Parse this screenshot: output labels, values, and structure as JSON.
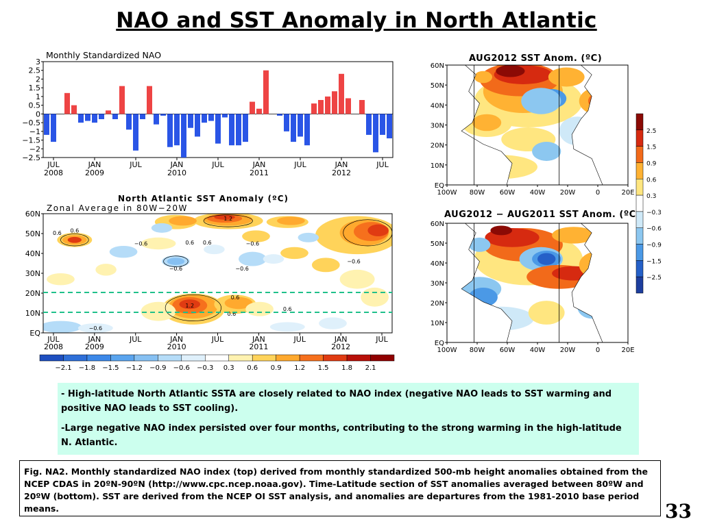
{
  "title": "NAO and SST Anomaly in North Atlantic",
  "nao": {
    "title": "Monthly Standardized NAO",
    "yticks": [
      "3",
      "2.5",
      "2",
      "1.5",
      "1",
      "0.5",
      "0",
      "−0.5",
      "−1",
      "−1.5",
      "−2",
      "−2.5"
    ],
    "xticks": [
      {
        "month": "JUL",
        "year": "2008"
      },
      {
        "month": "JAN",
        "year": "2009"
      },
      {
        "month": "JUL",
        "year": ""
      },
      {
        "month": "JAN",
        "year": "2010"
      },
      {
        "month": "JUL",
        "year": ""
      },
      {
        "month": "JAN",
        "year": "2011"
      },
      {
        "month": "JUL",
        "year": ""
      },
      {
        "month": "JAN",
        "year": "2012"
      },
      {
        "month": "JUL",
        "year": ""
      }
    ]
  },
  "sst": {
    "title": "North Atlantic SST Anomaly (ºC)",
    "subtitle": "Zonal Average in 80W−20W",
    "yticks": [
      "60N",
      "50N",
      "40N",
      "30N",
      "20N",
      "10N",
      "EQ"
    ],
    "xticks": [
      {
        "month": "JUL",
        "year": "2008"
      },
      {
        "month": "JAN",
        "year": "2009"
      },
      {
        "month": "JUL",
        "year": ""
      },
      {
        "month": "JAN",
        "year": "2010"
      },
      {
        "month": "JUL",
        "year": ""
      },
      {
        "month": "JAN",
        "year": "2011"
      },
      {
        "month": "JUL",
        "year": ""
      },
      {
        "month": "JAN",
        "year": "2012"
      },
      {
        "month": "JUL",
        "year": ""
      }
    ],
    "contour_labels": [
      "0.6",
      "0.6",
      "−0.6",
      "1.2",
      "0.6",
      "−0.6",
      "−0.6",
      "−0.6",
      "−0.6",
      "0.6",
      "1.2",
      "0.6",
      "0.6",
      "−0.6",
      "0.6"
    ],
    "colorbar_labels": [
      "−2.1",
      "−1.8",
      "−1.5",
      "−1.2",
      "−0.9",
      "−0.6",
      "−0.3",
      "0.3",
      "0.6",
      "0.9",
      "1.2",
      "1.5",
      "1.8",
      "2.1"
    ],
    "colorbar_colors": [
      "#1e4fc0",
      "#2e6fd8",
      "#3c88e8",
      "#5aa4ee",
      "#86c0f2",
      "#b5dcf8",
      "#dff0fb",
      "#ffffff",
      "#fff2b0",
      "#ffd35a",
      "#ffa92e",
      "#f6701d",
      "#e03b12",
      "#b81008",
      "#900000"
    ]
  },
  "maps": {
    "top_title": "AUG2012 SST Anom. (ºC)",
    "bottom_title": "AUG2012 − AUG2011 SST Anom. (ºC)",
    "lat_ticks": [
      "60N",
      "50N",
      "40N",
      "30N",
      "20N",
      "10N",
      "EQ"
    ],
    "lon_ticks": [
      "100W",
      "80W",
      "60W",
      "40W",
      "20W",
      "0",
      "20E"
    ],
    "colorbar_labels": [
      "2.5",
      "1.5",
      "0.9",
      "0.6",
      "0.3",
      "−0.3",
      "−0.6",
      "−0.9",
      "−1.5",
      "−2.5"
    ],
    "colorbar_colors": [
      "#8b0a05",
      "#d62a10",
      "#f26a1a",
      "#ffb233",
      "#ffe680",
      "#ffffff",
      "#cfe9f8",
      "#8cc7f0",
      "#4b99e6",
      "#2560c8",
      "#1d3e9e"
    ]
  },
  "chart_data": [
    {
      "type": "bar",
      "title": "Monthly Standardized NAO",
      "x": [
        "2008-06",
        "2008-07",
        "2008-08",
        "2008-09",
        "2008-10",
        "2008-11",
        "2008-12",
        "2009-01",
        "2009-02",
        "2009-03",
        "2009-04",
        "2009-05",
        "2009-06",
        "2009-07",
        "2009-08",
        "2009-09",
        "2009-10",
        "2009-11",
        "2009-12",
        "2010-01",
        "2010-02",
        "2010-03",
        "2010-04",
        "2010-05",
        "2010-06",
        "2010-07",
        "2010-08",
        "2010-09",
        "2010-10",
        "2010-11",
        "2010-12",
        "2011-01",
        "2011-02",
        "2011-03",
        "2011-04",
        "2011-05",
        "2011-06",
        "2011-07",
        "2011-08",
        "2011-09",
        "2011-10",
        "2011-11",
        "2011-12",
        "2012-01",
        "2012-02",
        "2012-03",
        "2012-04",
        "2012-05",
        "2012-06",
        "2012-07",
        "2012-08"
      ],
      "values": [
        -1.2,
        -1.6,
        0,
        1.2,
        0.5,
        -0.5,
        -0.4,
        -0.5,
        -0.3,
        0.2,
        -0.3,
        1.6,
        -0.9,
        -2.1,
        -0.3,
        1.6,
        -0.6,
        -0.1,
        -1.9,
        -1.8,
        -2.5,
        -0.8,
        -1.3,
        -0.5,
        -0.4,
        -1.7,
        -0.2,
        -1.8,
        -1.8,
        -1.6,
        0.7,
        0.3,
        2.5,
        0,
        -0.1,
        -1.0,
        -1.6,
        -1.3,
        -1.8,
        0.6,
        0.8,
        1.0,
        1.3,
        2.3,
        0.9,
        0,
        0.8,
        -1.2,
        -2.2,
        -1.2,
        -1.4
      ],
      "ylim": [
        -2.5,
        3
      ]
    },
    {
      "type": "heatmap",
      "title": "North Atlantic SST Anomaly (ºC)",
      "subtitle": "Zonal Average in 80W−20W",
      "x_range": [
        "2008-06",
        "2012-08"
      ],
      "y_range": [
        "EQ",
        "60N"
      ],
      "levels": [
        -2.1,
        -1.8,
        -1.5,
        -1.2,
        -0.9,
        -0.6,
        -0.3,
        0.3,
        0.6,
        0.9,
        1.2,
        1.5,
        1.8,
        2.1
      ]
    },
    {
      "type": "heatmap",
      "title": "AUG2012 SST Anom. (ºC)",
      "levels": [
        -2.5,
        -1.5,
        -0.9,
        -0.6,
        -0.3,
        0.3,
        0.6,
        0.9,
        1.5,
        2.5
      ]
    },
    {
      "type": "heatmap",
      "title": "AUG2012 − AUG2011 SST Anom. (ºC)",
      "levels": [
        -2.5,
        -1.5,
        -0.9,
        -0.6,
        -0.3,
        0.3,
        0.6,
        0.9,
        1.5,
        2.5
      ]
    }
  ],
  "bullets": [
    "- High-latitude North Atlantic SSTA are closely related to NAO index (negative NAO leads to SST warming and positive NAO leads to SST cooling).",
    "-Large negative NAO index persisted over four months, contributing to the strong warming in the high-latitude N. Atlantic."
  ],
  "caption": "Fig. NA2. Monthly standardized NAO index (top) derived from monthly standardized 500-mb height anomalies obtained from the NCEP CDAS in 20ºN-90ºN (http://www.cpc.ncep.noaa.gov).  Time-Latitude section of SST anomalies averaged between 80ºW and 20ºW (bottom). SST are derived from the NCEP OI SST analysis, and anomalies are departures from the 1981-2010 base period means.",
  "page_number": "33"
}
